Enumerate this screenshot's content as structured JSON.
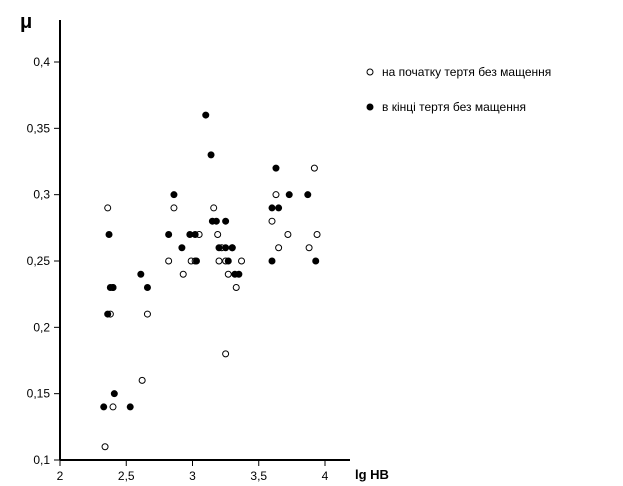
{
  "chart_data": {
    "type": "scatter",
    "ylabel": "μ",
    "xlabel": "lg HB",
    "xlim": [
      2,
      4
    ],
    "ylim": [
      0.1,
      0.45
    ],
    "x_ticks": [
      {
        "value": 2,
        "label": "2"
      },
      {
        "value": 2.5,
        "label": "2,5"
      },
      {
        "value": 3,
        "label": "3"
      },
      {
        "value": 3.5,
        "label": "3,5"
      },
      {
        "value": 4,
        "label": "4"
      }
    ],
    "y_ticks": [
      {
        "value": 0.1,
        "label": "0,1"
      },
      {
        "value": 0.15,
        "label": "0,15"
      },
      {
        "value": 0.2,
        "label": "0,2"
      },
      {
        "value": 0.25,
        "label": "0,25"
      },
      {
        "value": 0.3,
        "label": "0,3"
      },
      {
        "value": 0.35,
        "label": "0,35"
      },
      {
        "value": 0.4,
        "label": "0,4"
      }
    ],
    "legend_position": "top-right",
    "series": [
      {
        "name": "на початку тертя без мащення",
        "marker": "open-circle",
        "color": "#000000",
        "points": [
          [
            2.34,
            0.11
          ],
          [
            2.36,
            0.29
          ],
          [
            2.38,
            0.21
          ],
          [
            2.4,
            0.14
          ],
          [
            2.4,
            0.23
          ],
          [
            2.62,
            0.16
          ],
          [
            2.66,
            0.21
          ],
          [
            2.82,
            0.25
          ],
          [
            2.86,
            0.29
          ],
          [
            2.93,
            0.24
          ],
          [
            2.99,
            0.25
          ],
          [
            3.02,
            0.25
          ],
          [
            3.05,
            0.27
          ],
          [
            3.16,
            0.29
          ],
          [
            3.19,
            0.27
          ],
          [
            3.2,
            0.25
          ],
          [
            3.22,
            0.26
          ],
          [
            3.25,
            0.18
          ],
          [
            3.25,
            0.25
          ],
          [
            3.27,
            0.24
          ],
          [
            3.3,
            0.26
          ],
          [
            3.33,
            0.23
          ],
          [
            3.37,
            0.25
          ],
          [
            3.6,
            0.28
          ],
          [
            3.63,
            0.3
          ],
          [
            3.65,
            0.26
          ],
          [
            3.72,
            0.27
          ],
          [
            3.88,
            0.26
          ],
          [
            3.92,
            0.32
          ],
          [
            3.94,
            0.27
          ]
        ]
      },
      {
        "name": "в кінці тертя без мащення",
        "marker": "filled-circle",
        "color": "#000000",
        "points": [
          [
            2.33,
            0.14
          ],
          [
            2.36,
            0.21
          ],
          [
            2.37,
            0.27
          ],
          [
            2.38,
            0.23
          ],
          [
            2.4,
            0.23
          ],
          [
            2.41,
            0.15
          ],
          [
            2.53,
            0.14
          ],
          [
            2.61,
            0.24
          ],
          [
            2.66,
            0.23
          ],
          [
            2.82,
            0.27
          ],
          [
            2.86,
            0.3
          ],
          [
            2.92,
            0.26
          ],
          [
            2.98,
            0.27
          ],
          [
            3.02,
            0.27
          ],
          [
            3.03,
            0.25
          ],
          [
            3.1,
            0.36
          ],
          [
            3.14,
            0.33
          ],
          [
            3.15,
            0.28
          ],
          [
            3.18,
            0.28
          ],
          [
            3.2,
            0.26
          ],
          [
            3.25,
            0.28
          ],
          [
            3.25,
            0.26
          ],
          [
            3.27,
            0.25
          ],
          [
            3.3,
            0.26
          ],
          [
            3.32,
            0.24
          ],
          [
            3.35,
            0.24
          ],
          [
            3.6,
            0.25
          ],
          [
            3.6,
            0.29
          ],
          [
            3.63,
            0.32
          ],
          [
            3.65,
            0.29
          ],
          [
            3.73,
            0.3
          ],
          [
            3.87,
            0.3
          ],
          [
            3.93,
            0.25
          ]
        ]
      }
    ]
  }
}
